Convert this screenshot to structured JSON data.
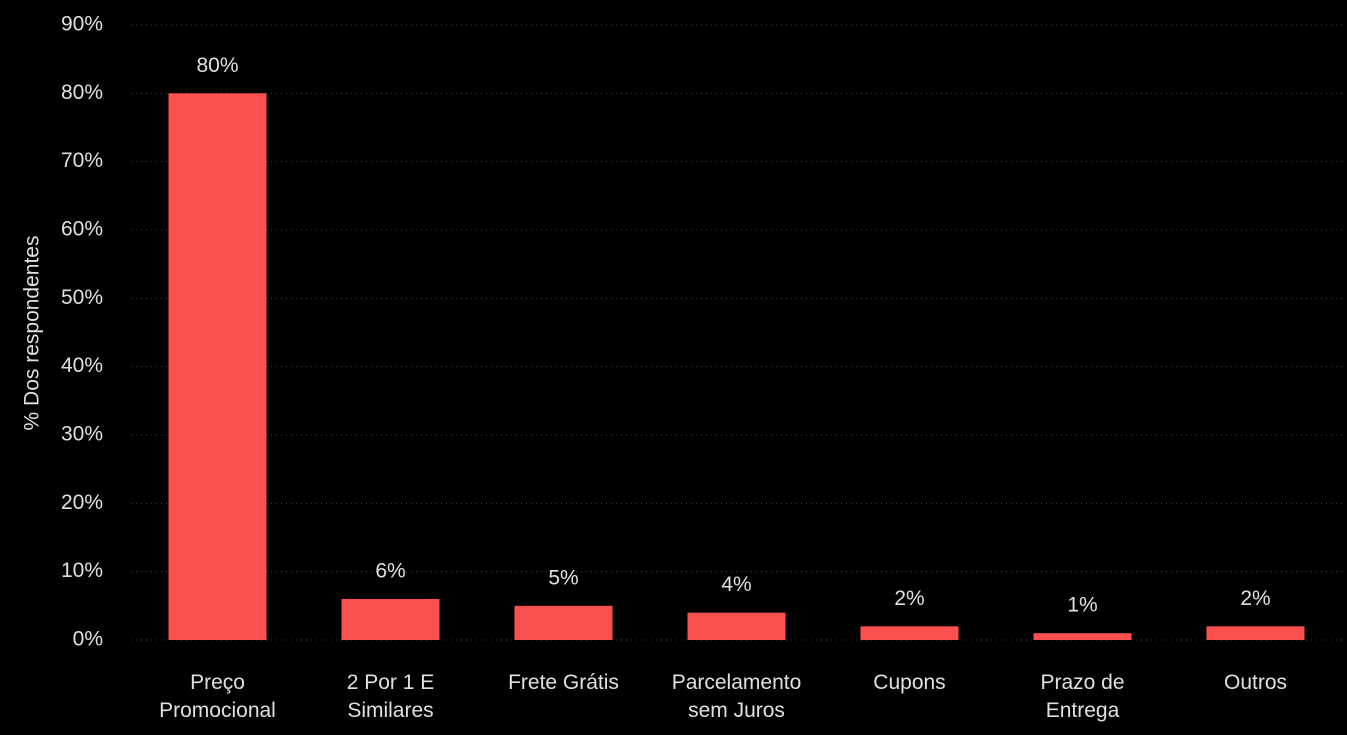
{
  "chart_data": {
    "type": "bar",
    "ylabel": "% Dos respondentes",
    "categories": [
      "Preço Promocional",
      "2 Por 1 E Similares",
      "Frete Grátis",
      "Parcelamento sem Juros",
      "Cupons",
      "Prazo de Entrega",
      "Outros"
    ],
    "values": [
      80,
      6,
      5,
      4,
      2,
      1,
      2
    ],
    "value_labels": [
      "80%",
      "6%",
      "5%",
      "4%",
      "2%",
      "1%",
      "2%"
    ],
    "color": "#fc4f4f",
    "ylim": [
      0,
      90
    ],
    "yticks": [
      {
        "value": 0,
        "label": "0%"
      },
      {
        "value": 10,
        "label": "10%"
      },
      {
        "value": 20,
        "label": "20%"
      },
      {
        "value": 30,
        "label": "30%"
      },
      {
        "value": 40,
        "label": "40%"
      },
      {
        "value": 50,
        "label": "50%"
      },
      {
        "value": 60,
        "label": "60%"
      },
      {
        "value": 70,
        "label": "70%"
      },
      {
        "value": 80,
        "label": "80%"
      },
      {
        "value": 90,
        "label": "90%"
      }
    ],
    "grid": true
  }
}
